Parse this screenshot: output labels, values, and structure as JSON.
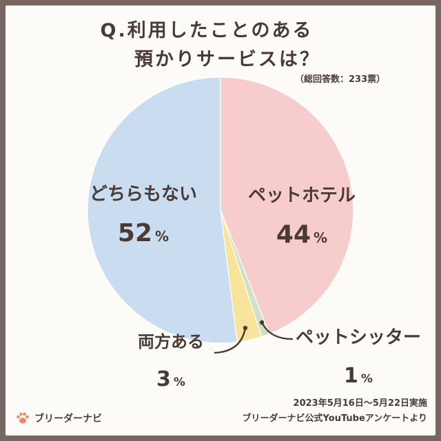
{
  "header": {
    "title_line1": "Q.利用したことのある",
    "title_line2": "預かりサービスは？",
    "note": "（総回答数：233票）"
  },
  "footer": {
    "period": "2023年5月16日〜5月22日実施",
    "source": "ブリーダーナビ公式YouTubeアンケートより",
    "brand": "ブリーダーナビ"
  },
  "chart_data": {
    "type": "pie",
    "title": "Q.利用したことのある 預かりサービスは？",
    "total_responses_label": "（総回答数：233票）",
    "slices": [
      {
        "label": "ペットホテル",
        "value": 44,
        "value_label": "44",
        "color": "#f7cccc"
      },
      {
        "label": "ペットシッター",
        "value": 1,
        "value_label": "1",
        "color": "#cfe3c4"
      },
      {
        "label": "両方ある",
        "value": 3,
        "value_label": "3",
        "color": "#f7e39a"
      },
      {
        "label": "どちらもない",
        "value": 52,
        "value_label": "52",
        "color": "#cadcf0"
      }
    ],
    "unit": "%",
    "start": "12 o'clock",
    "direction": "clockwise"
  },
  "colors": {
    "text": "#4a3a36",
    "frame": "#7a6660",
    "background": "#fdfbf7",
    "paw": "#e98a6a"
  },
  "icons": {
    "brand_icon": "paw-icon"
  }
}
